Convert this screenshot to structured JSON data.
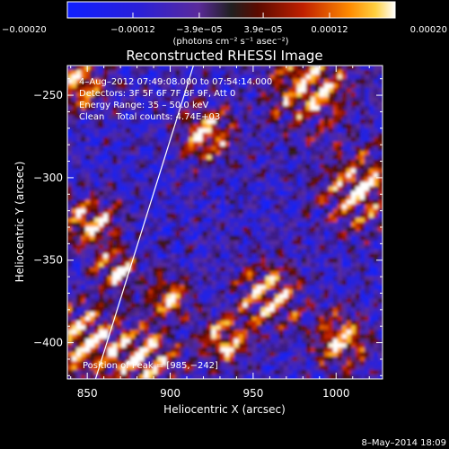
{
  "chart_data": {
    "type": "heatmap",
    "title": "Reconstructed RHESSI Image",
    "xlabel": "Heliocentric X (arcsec)",
    "ylabel": "Heliocentric Y (arcsec)",
    "xlim": [
      838,
      1028
    ],
    "ylim": [
      -422,
      -232
    ],
    "xticks": [
      850,
      900,
      950,
      1000
    ],
    "xtick_labels": [
      "850",
      "900",
      "950",
      "1000"
    ],
    "yticks": [
      -400,
      -350,
      -300,
      -250
    ],
    "ytick_labels": [
      "−400",
      "−350",
      "−300",
      "−250"
    ],
    "colorbar": {
      "range": [
        -0.0002,
        0.0002
      ],
      "ticks": [
        -0.0002,
        -0.00012,
        -3.9e-05,
        3.9e-05,
        0.00012,
        0.0002
      ],
      "tick_labels": [
        "−0.00020",
        "−0.00012",
        "−3.9e−05",
        "3.9e−05",
        "0.00012",
        "0.00020"
      ],
      "unit_label": "(photons cm⁻² s⁻¹ asec⁻²)"
    },
    "annotations": [
      "4–Aug–2012 07:49:08.000 to 07:54:14.000",
      "Detectors: 3F 5F 6F 7F 8F 9F, Att 0",
      "Energy Range: 35 – 50.0 keV",
      "Clean    Total counts: 4.74E+03"
    ],
    "peak_label": "Position of Peak = [985,−242]",
    "peak": [
      985,
      -242
    ],
    "limb_line": [
      [
        855,
        -422
      ],
      [
        914,
        -232
      ]
    ],
    "grid": false
  },
  "footer": {
    "date": "8–May–2014 18:09"
  }
}
